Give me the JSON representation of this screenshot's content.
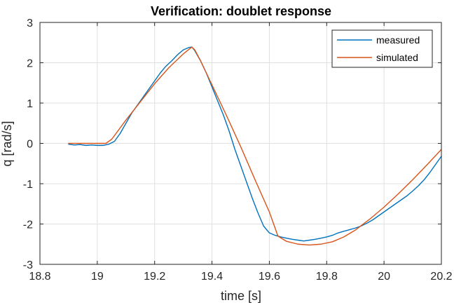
{
  "chart_data": {
    "type": "line",
    "title": "Verification: doublet response",
    "xlabel": "time [s]",
    "ylabel": "q [rad/s]",
    "xlim": [
      18.8,
      20.2
    ],
    "ylim": [
      -3,
      3
    ],
    "xticks": [
      18.8,
      19,
      19.2,
      19.4,
      19.6,
      19.8,
      20,
      20.2
    ],
    "yticks": [
      -3,
      -2,
      -1,
      0,
      1,
      2,
      3
    ],
    "xtick_labels": [
      "18.8",
      "19",
      "19.2",
      "19.4",
      "19.6",
      "19.8",
      "20",
      "20.2"
    ],
    "ytick_labels": [
      "-3",
      "-2",
      "-1",
      "0",
      "1",
      "2",
      "3"
    ],
    "grid": true,
    "legend_position": "top-right",
    "colors": {
      "measured": "#0072BD",
      "simulated": "#D95319",
      "grid": "#e0e0e0",
      "axes": "#262626"
    },
    "series": [
      {
        "name": "measured",
        "color": "#0072BD",
        "x": [
          18.9,
          18.92,
          18.94,
          18.96,
          18.98,
          19.0,
          19.02,
          19.04,
          19.06,
          19.08,
          19.1,
          19.12,
          19.14,
          19.16,
          19.18,
          19.2,
          19.22,
          19.24,
          19.26,
          19.28,
          19.3,
          19.32,
          19.33,
          19.34,
          19.36,
          19.38,
          19.4,
          19.42,
          19.44,
          19.46,
          19.48,
          19.5,
          19.52,
          19.54,
          19.56,
          19.58,
          19.6,
          19.62,
          19.64,
          19.66,
          19.68,
          19.7,
          19.72,
          19.74,
          19.76,
          19.78,
          19.8,
          19.82,
          19.84,
          19.86,
          19.88,
          19.9,
          19.92,
          19.94,
          19.96,
          19.98,
          20.0,
          20.02,
          20.04,
          20.06,
          20.08,
          20.1,
          20.12,
          20.14,
          20.16,
          20.18,
          20.2
        ],
        "values": [
          -0.02,
          -0.04,
          -0.03,
          -0.05,
          -0.04,
          -0.05,
          -0.05,
          -0.02,
          0.05,
          0.25,
          0.5,
          0.75,
          0.95,
          1.15,
          1.35,
          1.55,
          1.75,
          1.92,
          2.05,
          2.2,
          2.32,
          2.38,
          2.39,
          2.3,
          2.05,
          1.75,
          1.4,
          1.05,
          0.7,
          0.3,
          -0.15,
          -0.55,
          -0.95,
          -1.35,
          -1.72,
          -2.05,
          -2.22,
          -2.28,
          -2.32,
          -2.35,
          -2.38,
          -2.4,
          -2.42,
          -2.4,
          -2.38,
          -2.35,
          -2.32,
          -2.28,
          -2.22,
          -2.18,
          -2.14,
          -2.1,
          -2.05,
          -1.98,
          -1.9,
          -1.8,
          -1.7,
          -1.6,
          -1.5,
          -1.4,
          -1.3,
          -1.18,
          -1.05,
          -0.9,
          -0.72,
          -0.52,
          -0.32
        ]
      },
      {
        "name": "simulated",
        "color": "#D95319",
        "x": [
          18.9,
          18.95,
          19.0,
          19.03,
          19.05,
          19.1,
          19.15,
          19.2,
          19.25,
          19.3,
          19.33,
          19.34,
          19.36,
          19.4,
          19.45,
          19.5,
          19.55,
          19.6,
          19.63,
          19.66,
          19.7,
          19.74,
          19.78,
          19.82,
          19.86,
          19.9,
          19.95,
          20.0,
          20.05,
          20.1,
          20.15,
          20.2
        ],
        "values": [
          0.0,
          0.0,
          0.0,
          0.0,
          0.1,
          0.58,
          1.03,
          1.48,
          1.88,
          2.22,
          2.39,
          2.32,
          2.05,
          1.45,
          0.7,
          -0.08,
          -0.9,
          -1.7,
          -2.3,
          -2.43,
          -2.5,
          -2.52,
          -2.5,
          -2.44,
          -2.32,
          -2.15,
          -1.88,
          -1.58,
          -1.25,
          -0.9,
          -0.53,
          -0.15
        ]
      }
    ]
  }
}
